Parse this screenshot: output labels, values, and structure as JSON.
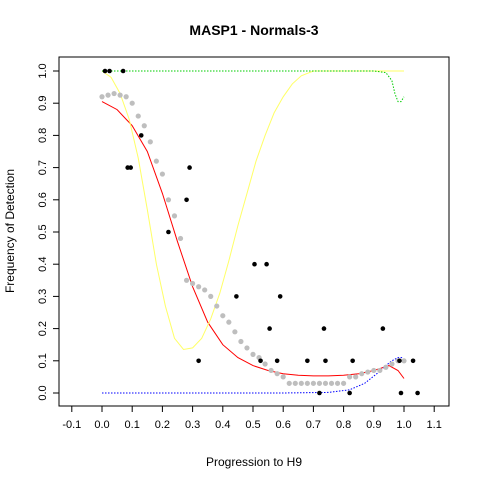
{
  "chart_data": {
    "type": "scatter",
    "title": "MASP1 - Normals-3",
    "xlabel": "Progression to H9",
    "ylabel": "Frequency of Detection",
    "xlim": [
      -0.1,
      1.1
    ],
    "ylim": [
      0.0,
      1.0
    ],
    "xticks": [
      "-0.1",
      "0.0",
      "0.1",
      "0.2",
      "0.3",
      "0.4",
      "0.5",
      "0.6",
      "0.7",
      "0.8",
      "0.9",
      "1.0",
      "1.1"
    ],
    "yticks": [
      "0.0",
      "0.1",
      "0.2",
      "0.3",
      "0.4",
      "0.5",
      "0.6",
      "0.7",
      "0.8",
      "0.9",
      "1.0"
    ],
    "grid": false,
    "colors": {
      "points": "#000000",
      "smoothed": "#bebebe",
      "fit": "#ff0000",
      "yellow_curve": "#ffff66",
      "green_curve": "#00cc00",
      "blue_curve": "#0000ff"
    },
    "series": [
      {
        "kind": "points",
        "x": [
          0.01,
          0.025,
          0.07,
          0.085,
          0.095,
          0.13,
          0.22,
          0.28,
          0.29,
          0.32,
          0.445,
          0.505,
          0.525,
          0.545,
          0.555,
          0.58,
          0.59,
          0.68,
          0.72,
          0.735,
          0.74,
          0.82,
          0.83,
          0.93,
          0.985,
          0.99,
          1.03,
          1.045
        ],
        "y": [
          1.0,
          1.0,
          1.0,
          0.7,
          0.7,
          0.8,
          0.5,
          0.6,
          0.7,
          0.1,
          0.3,
          0.4,
          0.1,
          0.4,
          0.2,
          0.1,
          0.3,
          0.1,
          0.0,
          0.2,
          0.1,
          0.0,
          0.1,
          0.2,
          0.1,
          0.0,
          0.1,
          0.0
        ]
      },
      {
        "kind": "smoothed",
        "x": [
          0.0,
          0.02,
          0.04,
          0.06,
          0.08,
          0.1,
          0.12,
          0.14,
          0.16,
          0.18,
          0.2,
          0.22,
          0.24,
          0.26,
          0.28,
          0.3,
          0.32,
          0.34,
          0.36,
          0.38,
          0.4,
          0.42,
          0.44,
          0.46,
          0.48,
          0.5,
          0.52,
          0.54,
          0.56,
          0.58,
          0.6,
          0.62,
          0.64,
          0.66,
          0.68,
          0.7,
          0.72,
          0.74,
          0.76,
          0.78,
          0.8,
          0.82,
          0.84,
          0.86,
          0.88,
          0.9,
          0.92,
          0.94,
          0.96,
          0.98,
          1.0
        ],
        "y": [
          0.92,
          0.925,
          0.93,
          0.925,
          0.92,
          0.9,
          0.86,
          0.83,
          0.78,
          0.72,
          0.68,
          0.6,
          0.55,
          0.48,
          0.35,
          0.34,
          0.33,
          0.32,
          0.3,
          0.27,
          0.24,
          0.22,
          0.19,
          0.16,
          0.14,
          0.12,
          0.11,
          0.09,
          0.07,
          0.06,
          0.05,
          0.03,
          0.03,
          0.03,
          0.03,
          0.03,
          0.03,
          0.03,
          0.03,
          0.03,
          0.03,
          0.05,
          0.05,
          0.06,
          0.065,
          0.07,
          0.07,
          0.08,
          0.09,
          0.1,
          0.1
        ]
      },
      {
        "kind": "fit",
        "x": [
          0.0,
          0.05,
          0.1,
          0.15,
          0.2,
          0.25,
          0.3,
          0.35,
          0.4,
          0.45,
          0.5,
          0.55,
          0.6,
          0.65,
          0.7,
          0.75,
          0.8,
          0.85,
          0.9,
          0.95,
          0.98,
          1.0
        ],
        "y": [
          0.905,
          0.88,
          0.83,
          0.75,
          0.62,
          0.47,
          0.33,
          0.22,
          0.15,
          0.11,
          0.085,
          0.07,
          0.06,
          0.055,
          0.053,
          0.053,
          0.055,
          0.06,
          0.07,
          0.085,
          0.07,
          0.045
        ]
      },
      {
        "kind": "yellow",
        "x": [
          0.0,
          0.03,
          0.06,
          0.09,
          0.12,
          0.15,
          0.18,
          0.21,
          0.24,
          0.27,
          0.3,
          0.33,
          0.36,
          0.39,
          0.42,
          0.45,
          0.48,
          0.51,
          0.54,
          0.57,
          0.6,
          0.63,
          0.66,
          0.7,
          0.75,
          0.8,
          0.85,
          0.9,
          0.95,
          1.0
        ],
        "y": [
          1.0,
          0.98,
          0.93,
          0.85,
          0.73,
          0.57,
          0.4,
          0.27,
          0.17,
          0.135,
          0.14,
          0.17,
          0.23,
          0.31,
          0.41,
          0.52,
          0.62,
          0.72,
          0.8,
          0.87,
          0.92,
          0.96,
          0.985,
          1.0,
          1.0,
          1.0,
          1.0,
          1.0,
          1.0,
          1.0
        ]
      },
      {
        "kind": "green",
        "x": [
          0.0,
          0.2,
          0.4,
          0.6,
          0.8,
          0.9,
          0.94,
          0.96,
          0.97,
          0.98,
          0.99,
          1.0
        ],
        "y": [
          1.0,
          1.0,
          1.0,
          1.0,
          1.0,
          1.0,
          0.995,
          0.97,
          0.93,
          0.905,
          0.905,
          0.92
        ]
      },
      {
        "kind": "blue",
        "x": [
          0.0,
          0.2,
          0.4,
          0.6,
          0.75,
          0.82,
          0.87,
          0.91,
          0.94,
          0.96,
          0.98,
          0.995
        ],
        "y": [
          0.0,
          0.0,
          0.0,
          0.0,
          0.002,
          0.01,
          0.03,
          0.06,
          0.085,
          0.1,
          0.11,
          0.11
        ]
      }
    ]
  }
}
